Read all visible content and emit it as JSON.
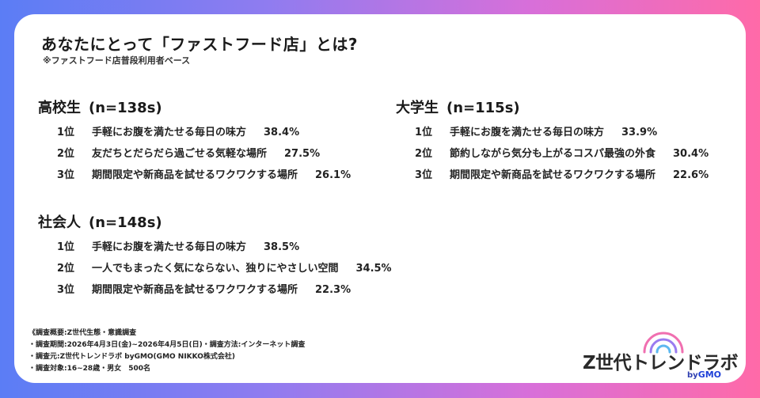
{
  "header": {
    "title": "あなたにとって「ファストフード店」とは?",
    "subtitle": "※ファストフード店普段利用者ベース"
  },
  "groups": [
    {
      "name": "高校生",
      "n": "(n=138s)",
      "items": [
        {
          "rank": "1位",
          "text": "手軽にお腹を満たせる毎日の味方",
          "pct": "38.4%"
        },
        {
          "rank": "2位",
          "text": "友だちとだらだら過ごせる気軽な場所",
          "pct": "27.5%"
        },
        {
          "rank": "3位",
          "text": "期間限定や新商品を試せるワクワクする場所",
          "pct": "26.1%"
        }
      ]
    },
    {
      "name": "大学生",
      "n": "(n=115s)",
      "items": [
        {
          "rank": "1位",
          "text": "手軽にお腹を満たせる毎日の味方",
          "pct": "33.9%"
        },
        {
          "rank": "2位",
          "text": "節約しながら気分も上がるコスパ最強の外食",
          "pct": "30.4%"
        },
        {
          "rank": "3位",
          "text": "期間限定や新商品を試せるワクワクする場所",
          "pct": "22.6%"
        }
      ]
    },
    {
      "name": "社会人",
      "n": "(n=148s)",
      "items": [
        {
          "rank": "1位",
          "text": "手軽にお腹を満たせる毎日の味方",
          "pct": "38.5%"
        },
        {
          "rank": "2位",
          "text": "一人でもまったく気にならない、独りにやさしい空間",
          "pct": "34.5%"
        },
        {
          "rank": "3位",
          "text": "期間限定や新商品を試せるワクワクする場所",
          "pct": "22.3%"
        }
      ]
    }
  ],
  "notes": [
    "《調査概要:Z世代生態・意識調査",
    "・調査期間:2026年4月3日(金)~2026年4月5日(日)・調査方法:インターネット調査",
    "・調査元:Z世代トレンドラボ byGMO(GMO NIKKO株式会社)",
    "・調査対象:16~28歳・男女　500名"
  ],
  "logo": {
    "name": "Z世代トレンドラボ",
    "by": "by",
    "gmo": "GMO",
    "wave_colors": [
      "#f06fb0",
      "#9a7cf0",
      "#5db8f0"
    ]
  }
}
